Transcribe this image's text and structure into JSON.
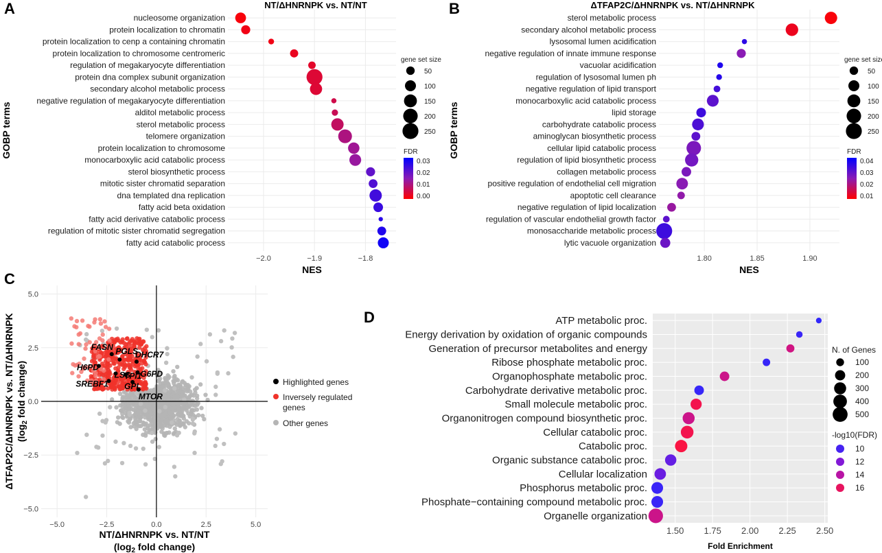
{
  "chart_data": [
    {
      "panel": "A",
      "type": "scatter",
      "title": "NT/ΔHNRNPK vs. NT/NT",
      "xlabel": "NES",
      "ylabel": "GOBP terms",
      "xlim": [
        -2.07,
        -1.74
      ],
      "xticks": [
        -2.0,
        -1.9,
        -1.8
      ],
      "xtick_labels": [
        "−2.0",
        "−1.9",
        "−1.8"
      ],
      "size_legend_title": "gene set size",
      "size_legend": [
        50,
        100,
        150,
        200,
        250
      ],
      "color_legend_title": "FDR",
      "color_legend_ticks": [
        "0.03",
        "0.02",
        "0.01",
        "0.00"
      ],
      "color_range": [
        0.0,
        0.034
      ],
      "terms": [
        "nucleosome organization",
        "protein localization to chromatin",
        "protein localization to cenp a containing chromatin",
        "protein localization to chromosome centromeric",
        "regulation of megakaryocyte differentiation",
        "protein dna complex subunit organization",
        "secondary alcohol metabolic process",
        "negative regulation of megakaryocyte differentiation",
        "alditol metabolic process",
        "sterol metabolic process",
        "telomere organization",
        "protein localization to chromosome",
        "monocarboxylic acid catabolic process",
        "sterol biosynthetic process",
        "mitotic sister chromatid separation",
        "dna templated dna replication",
        "fatty acid beta oxidation",
        "fatty acid derivative catabolic process",
        "regulation of mitotic sister chromatid segregation",
        "fatty acid catabolic process"
      ],
      "nes": [
        -2.045,
        -2.035,
        -1.985,
        -1.94,
        -1.905,
        -1.9,
        -1.897,
        -1.862,
        -1.86,
        -1.855,
        -1.84,
        -1.823,
        -1.82,
        -1.79,
        -1.785,
        -1.78,
        -1.775,
        -1.77,
        -1.768,
        -1.765
      ],
      "size": [
        95,
        60,
        15,
        45,
        35,
        250,
        130,
        10,
        20,
        135,
        175,
        110,
        120,
        60,
        55,
        135,
        70,
        5,
        55,
        100
      ],
      "fdr": [
        0.001,
        0.002,
        0.002,
        0.003,
        0.004,
        0.005,
        0.005,
        0.007,
        0.008,
        0.009,
        0.012,
        0.014,
        0.015,
        0.022,
        0.024,
        0.026,
        0.027,
        0.029,
        0.03,
        0.032
      ]
    },
    {
      "panel": "B",
      "type": "scatter",
      "title": "ΔTFAP2C/ΔHNRNPK vs. NT/ΔHNRNPK",
      "xlabel": "NES",
      "ylabel": "GOBP terms",
      "xlim": [
        1.757,
        1.928
      ],
      "xticks": [
        1.8,
        1.85,
        1.9
      ],
      "xtick_labels": [
        "1.80",
        "1.85",
        "1.90"
      ],
      "size_legend_title": "gene set size",
      "size_legend": [
        50,
        100,
        150,
        200,
        250
      ],
      "color_legend_title": "FDR",
      "color_legend_ticks": [
        "0.04",
        "0.03",
        "0.02",
        "0.01"
      ],
      "color_range": [
        0.006,
        0.042
      ],
      "terms": [
        "sterol metabolic process",
        "secondary alcohol metabolic process",
        "lysosomal lumen acidification",
        "negative regulation of innate immune response",
        "vacuolar acidification",
        "regulation of lysosomal lumen ph",
        "negative regulation of lipid transport",
        "monocarboxylic acid catabolic process",
        "lipid storage",
        "carbohydrate catabolic process",
        "aminoglycan biosynthetic process",
        "cellular lipid catabolic process",
        "regulation of lipid biosynthetic process",
        "collagen metabolic process",
        "positive regulation of endothelial cell migration",
        "apoptotic cell clearance",
        "negative regulation of lipid localization",
        "regulation of vascular endothelial growth factor",
        "monosaccharide metabolic process",
        "lytic vacuole organization"
      ],
      "nes": [
        1.92,
        1.883,
        1.838,
        1.835,
        1.815,
        1.814,
        1.812,
        1.808,
        1.797,
        1.794,
        1.792,
        1.79,
        1.788,
        1.783,
        1.779,
        1.778,
        1.769,
        1.764,
        1.762,
        1.763
      ],
      "size": [
        135,
        140,
        10,
        60,
        15,
        15,
        25,
        120,
        70,
        120,
        55,
        200,
        160,
        70,
        115,
        35,
        55,
        25,
        250,
        80
      ],
      "fdr": [
        0.007,
        0.009,
        0.036,
        0.024,
        0.038,
        0.037,
        0.033,
        0.03,
        0.034,
        0.032,
        0.03,
        0.026,
        0.027,
        0.026,
        0.024,
        0.023,
        0.022,
        0.03,
        0.034,
        0.028
      ]
    },
    {
      "panel": "C",
      "type": "scatter",
      "xlabel": "NT/ΔHNRNPK vs. NT/NT",
      "xlabel2": "(log",
      "xlabel_sub": "2",
      "xlabel3": " fold change)",
      "ylabel": "ΔTFAP2C/ΔHNRNPK vs. NT/ΔHNRNPK",
      "ylabel2": "(log",
      "ylabel_sub": "2",
      "ylabel3": " fold change)",
      "xlim": [
        -5.8,
        5.6
      ],
      "ylim": [
        -5.4,
        5.4
      ],
      "xticks": [
        -5.0,
        -2.5,
        0.0,
        2.5,
        5.0
      ],
      "yticks": [
        -5.0,
        -2.5,
        0.0,
        2.5,
        5.0
      ],
      "tick_labels": [
        "−5.0",
        "−2.5",
        "0.0",
        "2.5",
        "5.0"
      ],
      "legend": [
        "Highlighted genes",
        "Inversely regulated genes",
        "Other genes"
      ],
      "legend_line1": "Highlighted genes",
      "legend_line2a": "Inversely regulated",
      "legend_line2b": "genes",
      "legend_line3": "Other genes",
      "highlighted_genes": [
        {
          "name": "FASN",
          "x": -2.25,
          "y": 2.2
        },
        {
          "name": "PGLS",
          "x": -1.85,
          "y": 1.95
        },
        {
          "name": "DHCR7",
          "x": -1.0,
          "y": 1.85
        },
        {
          "name": "H6PD",
          "x": -2.9,
          "y": 1.65
        },
        {
          "name": "G6PD",
          "x": -0.95,
          "y": 1.35
        },
        {
          "name": "LSS",
          "x": -2.05,
          "y": 1.3
        },
        {
          "name": "TPI1",
          "x": -1.55,
          "y": 1.25
        },
        {
          "name": "SREBF1",
          "x": -2.4,
          "y": 0.95
        },
        {
          "name": "GPI",
          "x": -1.2,
          "y": 0.9
        },
        {
          "name": "MTOR",
          "x": -0.9,
          "y": 0.55
        }
      ]
    },
    {
      "panel": "D",
      "type": "scatter",
      "xlabel": "Fold Enrichment",
      "xlim": [
        1.35,
        2.52
      ],
      "xticks": [
        1.5,
        1.75,
        2.0,
        2.25,
        2.5
      ],
      "xtick_labels": [
        "1.50",
        "1.75",
        "2.00",
        "2.25",
        "2.50"
      ],
      "size_legend_title": "N. of Genes",
      "size_legend": [
        100,
        200,
        300,
        400,
        500
      ],
      "color_legend_title": "-log10(FDR)",
      "color_legend": [
        10,
        12,
        14,
        16
      ],
      "terms": [
        "ATP metabolic proc.",
        "Energy derivation by oxidation of organic compounds",
        "Generation of precursor metabolites and energy",
        "Ribose phosphate metabolic proc.",
        "Organophosphate metabolic proc.",
        "Carbohydrate derivative metabolic proc.",
        "Small molecule metabolic proc.",
        "Organonitrogen compound biosynthetic proc.",
        "Cellular catabolic proc.",
        "Catabolic proc.",
        "Organic substance catabolic proc.",
        "Cellular localization",
        "Phosphorus metabolic proc.",
        "Phosphate-containing compound metabolic proc.",
        "Organelle organization"
      ],
      "fold": [
        2.46,
        2.33,
        2.27,
        2.11,
        1.83,
        1.66,
        1.64,
        1.59,
        1.58,
        1.54,
        1.47,
        1.4,
        1.38,
        1.38,
        1.37
      ],
      "genes": [
        40,
        60,
        110,
        90,
        170,
        170,
        250,
        300,
        340,
        320,
        260,
        270,
        280,
        280,
        470
      ],
      "neglog10fdr": [
        9.3,
        9.6,
        15.0,
        9.5,
        14.8,
        9.5,
        16.5,
        14.8,
        16.5,
        16.8,
        11.0,
        11.2,
        9.6,
        9.6,
        14.8
      ]
    }
  ]
}
